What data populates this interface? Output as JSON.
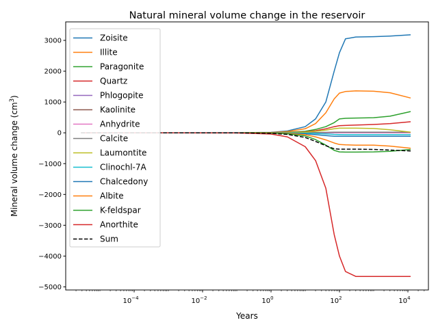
{
  "chart_data": {
    "type": "line",
    "title": "Natural mineral volume change in the reservoir",
    "xlabel": "Years",
    "ylabel": "Mineral volume change (cm",
    "ylabel_sup": "3",
    "ylabel_close": ")",
    "xscale": "log",
    "xlim_exp": [
      -6,
      4.6
    ],
    "ylim": [
      -5100,
      3600
    ],
    "xticks": [
      {
        "exp": -4,
        "label": "10",
        "sup": "−4"
      },
      {
        "exp": -2,
        "label": "10",
        "sup": "−2"
      },
      {
        "exp": 0,
        "label": "10",
        "sup": "0"
      },
      {
        "exp": 2,
        "label": "10",
        "sup": "2"
      },
      {
        "exp": 4,
        "label": "10",
        "sup": "4"
      }
    ],
    "yticks": [
      3000,
      2000,
      1000,
      0,
      -1000,
      -2000,
      -3000,
      -4000,
      -5000
    ],
    "ytick_labels": [
      "3000",
      "2000",
      "1000",
      "0",
      "−1000",
      "−2000",
      "−3000",
      "−4000",
      "−5000"
    ],
    "grid": false,
    "legend_position": "top-left",
    "x": [
      2.8e-06,
      0.001,
      0.1,
      1,
      3,
      10,
      20,
      40,
      70,
      100,
      150,
      300,
      1000,
      3000,
      12000
    ],
    "series": [
      {
        "name": "Zoisite",
        "color": "#1f77b4",
        "values": [
          0,
          0,
          2,
          15,
          60,
          200,
          450,
          1000,
          2000,
          2600,
          3050,
          3110,
          3120,
          3140,
          3180
        ]
      },
      {
        "name": "Illite",
        "color": "#ff7f0e",
        "values": [
          0,
          0,
          1,
          10,
          40,
          130,
          300,
          650,
          1100,
          1290,
          1340,
          1360,
          1350,
          1300,
          1130
        ]
      },
      {
        "name": "Paragonite",
        "color": "#2ca02c",
        "values": [
          0,
          0,
          0,
          5,
          15,
          50,
          110,
          200,
          330,
          450,
          470,
          480,
          490,
          540,
          690
        ]
      },
      {
        "name": "Quartz",
        "color": "#d62728",
        "values": [
          0,
          0,
          0,
          3,
          10,
          30,
          70,
          130,
          200,
          230,
          240,
          250,
          270,
          300,
          360
        ]
      },
      {
        "name": "Phlogopite",
        "color": "#9467bd",
        "values": [
          0,
          0,
          0,
          0,
          0,
          0,
          0,
          0,
          0,
          0,
          0,
          0,
          0,
          0,
          0
        ]
      },
      {
        "name": "Kaolinite",
        "color": "#8c564b",
        "values": [
          0,
          0,
          0,
          0,
          0,
          1,
          2,
          3,
          4,
          4,
          4,
          4,
          4,
          4,
          4
        ]
      },
      {
        "name": "Anhydrite",
        "color": "#e377c2",
        "values": [
          0,
          0,
          0,
          0,
          0,
          0,
          0,
          0,
          0,
          0,
          0,
          0,
          0,
          0,
          0
        ]
      },
      {
        "name": "Calcite",
        "color": "#7f7f7f",
        "values": [
          0,
          0,
          0,
          1,
          2,
          5,
          10,
          15,
          20,
          20,
          20,
          20,
          20,
          20,
          20
        ]
      },
      {
        "name": "Laumontite",
        "color": "#bcbd22",
        "values": [
          0,
          0,
          0,
          2,
          6,
          20,
          50,
          90,
          130,
          150,
          150,
          150,
          140,
          100,
          20
        ]
      },
      {
        "name": "Clinochl-7A",
        "color": "#17becf",
        "values": [
          0,
          0,
          0,
          -1,
          -4,
          -10,
          -20,
          -35,
          -50,
          -55,
          -60,
          -60,
          -60,
          -60,
          -60
        ]
      },
      {
        "name": "Chalcedony",
        "color": "#1f77b4",
        "values": [
          0,
          0,
          0,
          -2,
          -10,
          -30,
          -60,
          -90,
          -110,
          -110,
          -110,
          -110,
          -110,
          -110,
          -110
        ]
      },
      {
        "name": "Albite",
        "color": "#ff7f0e",
        "values": [
          0,
          0,
          -1,
          -5,
          -20,
          -60,
          -130,
          -230,
          -330,
          -380,
          -390,
          -400,
          -400,
          -430,
          -500
        ]
      },
      {
        "name": "K-feldspar",
        "color": "#2ca02c",
        "values": [
          0,
          0,
          -1,
          -8,
          -30,
          -100,
          -220,
          -400,
          -570,
          -620,
          -625,
          -625,
          -620,
          -600,
          -540
        ]
      },
      {
        "name": "Anorthite",
        "color": "#d62728",
        "values": [
          0,
          0,
          -5,
          -40,
          -130,
          -450,
          -900,
          -1800,
          -3300,
          -4000,
          -4500,
          -4660,
          -4660,
          -4660,
          -4660
        ]
      },
      {
        "name": "Sum",
        "color": "#000000",
        "dashed": true,
        "values": [
          0,
          0,
          -3,
          -15,
          -50,
          -150,
          -280,
          -420,
          -520,
          -530,
          -530,
          -530,
          -540,
          -560,
          -590
        ]
      }
    ]
  }
}
